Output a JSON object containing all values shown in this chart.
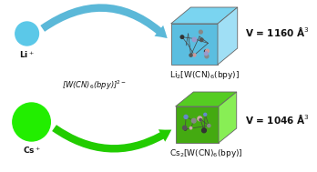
{
  "bg_color": "#ffffff",
  "li_circle_color": "#5bc8e8",
  "cs_circle_color": "#22ee00",
  "arrow_color_top": "#5bb8d8",
  "arrow_color_bottom": "#22cc00",
  "cube_top_face": "#7ad4f0",
  "cube_front_face": "#5bbee0",
  "cube_right_face": "#a0dff5",
  "cube_bottom_top_face": "#55cc22",
  "cube_bottom_front_face": "#44aa11",
  "cube_bottom_right_face": "#88ee55",
  "li_label": "Li$^+$",
  "cs_label": "Cs$^+$",
  "anion_label": "[W(CN)$_6$(bpy)]$^{2-}$",
  "product_top_label": "Li$_2$[W(CN)$_6$(bpy)]",
  "product_bottom_label": "Cs$_2$[W(CN)$_6$(bpy)]",
  "volume_top": "V = 1160 Å$^3$",
  "volume_bottom": "V = 1046 Å$^3$",
  "label_fontsize": 6.5,
  "volume_fontsize": 7.5,
  "anion_fontsize": 6.0
}
